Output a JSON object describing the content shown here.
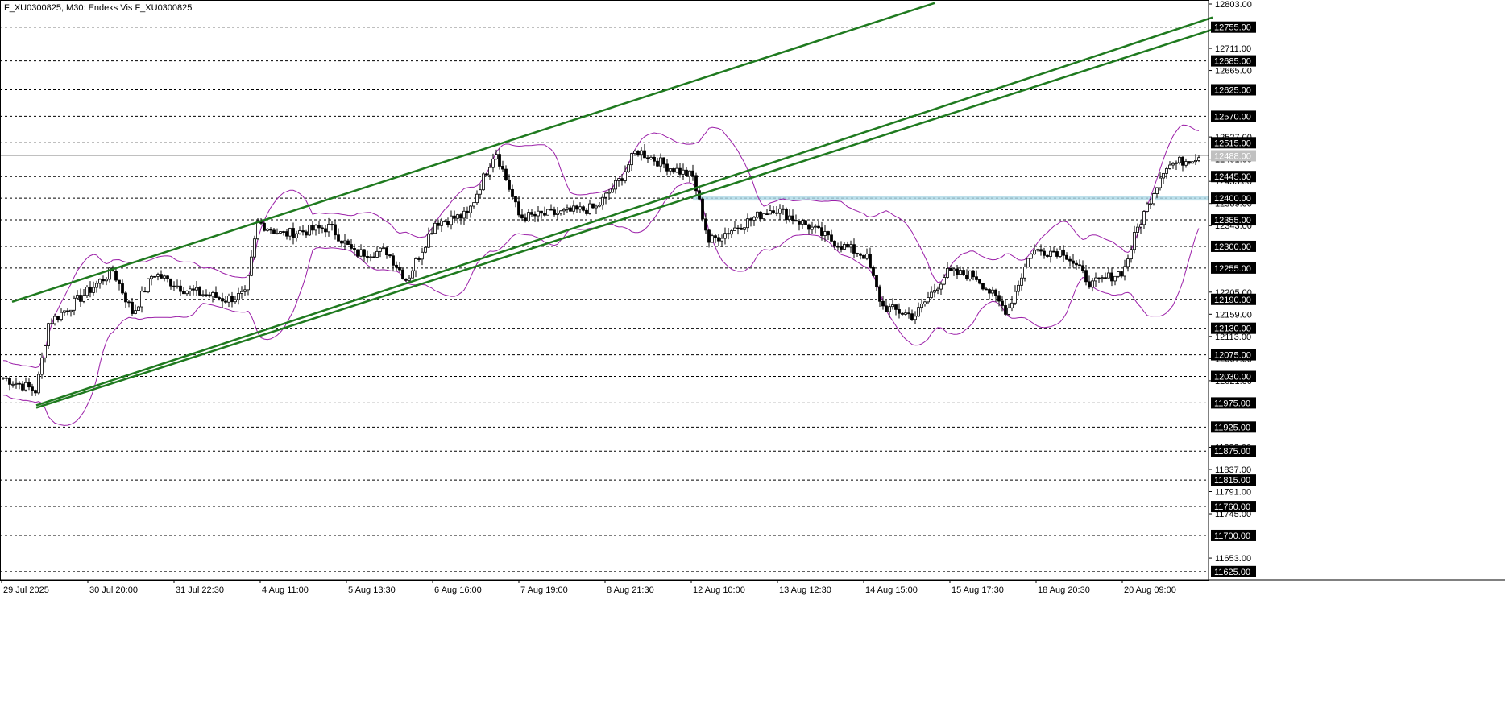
{
  "header": {
    "title": "F_XU0300825, M30:  Endeks Vis F_XU0300825"
  },
  "colors": {
    "background": "#ffffff",
    "axis": "#000000",
    "grid": "#000000",
    "candle": "#000000",
    "bollinger": "#9b1fa8",
    "trend": "#1f7a1f",
    "support_zone": "#add8e6",
    "current_price_line": "#c0c0c0",
    "label_bg": "#000000",
    "label_text": "#ffffff"
  },
  "chart_data": {
    "type": "candlestick",
    "symbol": "F_XU0300825",
    "timeframe": "M30",
    "ylim": [
      11608,
      12808
    ],
    "x_ticks": [
      "29 Jul 2025",
      "30 Jul 20:00",
      "31 Jul 22:30",
      "4 Aug 11:00",
      "5 Aug 13:30",
      "6 Aug 16:00",
      "7 Aug 19:00",
      "8 Aug 21:30",
      "12 Aug 10:00",
      "13 Aug 12:30",
      "14 Aug 15:00",
      "15 Aug 17:30",
      "18 Aug 20:30",
      "20 Aug 09:00"
    ],
    "y_ticks": [
      "12803.00",
      "12711.00",
      "12665.00",
      "12527.00",
      "12481.00",
      "12435.00",
      "12389.00",
      "12343.00",
      "12205.00",
      "12159.00",
      "12113.00",
      "12067.00",
      "12021.00",
      "11883.00",
      "11837.00",
      "11791.00",
      "11745.00",
      "11653.00"
    ],
    "levels": [
      12755,
      12685,
      12625,
      12570,
      12515,
      12445,
      12400,
      12355,
      12300,
      12255,
      12190,
      12130,
      12075,
      12030,
      11975,
      11925,
      11875,
      11815,
      11760,
      11700,
      11625
    ],
    "level_labels": [
      "12755.00",
      "12685.00",
      "12625.00",
      "12570.00",
      "12515.00",
      "12445.00",
      "12400.00",
      "12355.00",
      "12300.00",
      "12255.00",
      "12190.00",
      "12130.00",
      "12075.00",
      "12030.00",
      "11975.00",
      "11925.00",
      "11875.00",
      "11815.00",
      "11760.00",
      "11700.00",
      "11625.00"
    ],
    "current_price": 12488,
    "current_price_label": "12488.00",
    "support_zone": [
      12395,
      12405
    ],
    "price_path": [
      [
        0,
        12030
      ],
      [
        45,
        12000
      ],
      [
        60,
        12140
      ],
      [
        90,
        12180
      ],
      [
        140,
        12250
      ],
      [
        165,
        12160
      ],
      [
        190,
        12245
      ],
      [
        230,
        12210
      ],
      [
        280,
        12190
      ],
      [
        305,
        12200
      ],
      [
        320,
        12350
      ],
      [
        350,
        12325
      ],
      [
        410,
        12340
      ],
      [
        440,
        12285
      ],
      [
        480,
        12290
      ],
      [
        505,
        12230
      ],
      [
        540,
        12350
      ],
      [
        580,
        12365
      ],
      [
        615,
        12500
      ],
      [
        645,
        12360
      ],
      [
        700,
        12370
      ],
      [
        740,
        12380
      ],
      [
        770,
        12440
      ],
      [
        790,
        12500
      ],
      [
        830,
        12465
      ],
      [
        860,
        12445
      ],
      [
        880,
        12310
      ],
      [
        920,
        12345
      ],
      [
        960,
        12380
      ],
      [
        1000,
        12345
      ],
      [
        1040,
        12305
      ],
      [
        1075,
        12280
      ],
      [
        1095,
        12175
      ],
      [
        1135,
        12155
      ],
      [
        1175,
        12245
      ],
      [
        1210,
        12240
      ],
      [
        1250,
        12165
      ],
      [
        1280,
        12290
      ],
      [
        1320,
        12290
      ],
      [
        1355,
        12220
      ],
      [
        1395,
        12250
      ],
      [
        1410,
        12330
      ],
      [
        1445,
        12465
      ],
      [
        1488,
        12488
      ]
    ],
    "trendlines": [
      {
        "from": [
          15,
          12185
        ],
        "to": [
          1160,
          12805
        ]
      },
      {
        "from": [
          45,
          11970
        ],
        "to": [
          1505,
          12775
        ]
      },
      {
        "from": [
          45,
          11965
        ],
        "to": [
          1505,
          12750
        ]
      }
    ]
  }
}
